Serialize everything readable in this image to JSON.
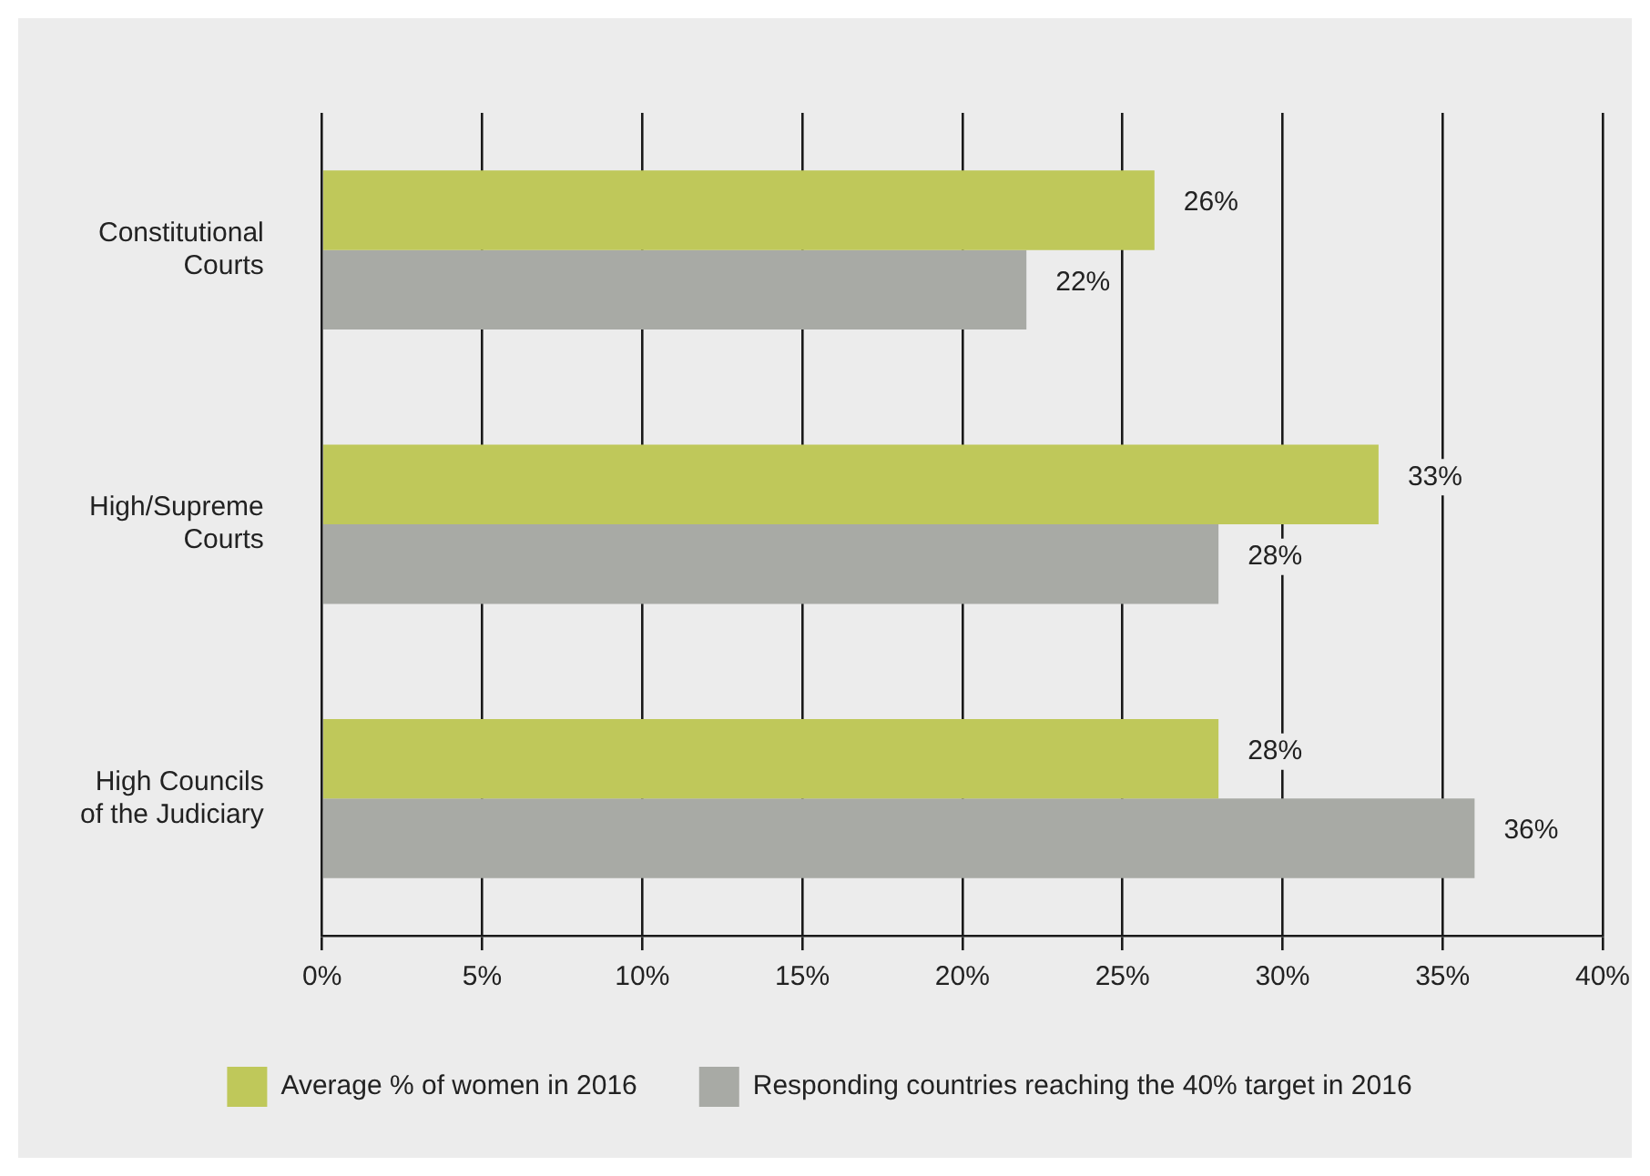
{
  "chart_data": {
    "type": "bar",
    "orientation": "horizontal",
    "categories": [
      "Constitutional\nCourts",
      "High/Supreme\nCourts",
      "High Councils\nof the Judiciary"
    ],
    "series": [
      {
        "name": "Average % of women in 2016",
        "color": "#bfc85a",
        "values": [
          26,
          33,
          28
        ],
        "value_labels": [
          "26%",
          "33%",
          "28%"
        ]
      },
      {
        "name": "Responding countries reaching the 40% target in 2016",
        "color": "#a8aaa5",
        "values": [
          22,
          28,
          36
        ],
        "value_labels": [
          "22%",
          "28%",
          "36%"
        ]
      }
    ],
    "xlim": [
      0,
      40
    ],
    "xticks": [
      {
        "value": 0,
        "label": "0%"
      },
      {
        "value": 5,
        "label": "5%"
      },
      {
        "value": 10,
        "label": "10%"
      },
      {
        "value": 15,
        "label": "15%"
      },
      {
        "value": 20,
        "label": "20%"
      },
      {
        "value": 25,
        "label": "25%"
      },
      {
        "value": 30,
        "label": "30%"
      },
      {
        "value": 35,
        "label": "35%"
      },
      {
        "value": 40,
        "label": "40%"
      }
    ],
    "grid": "x",
    "legend": "bottom"
  }
}
